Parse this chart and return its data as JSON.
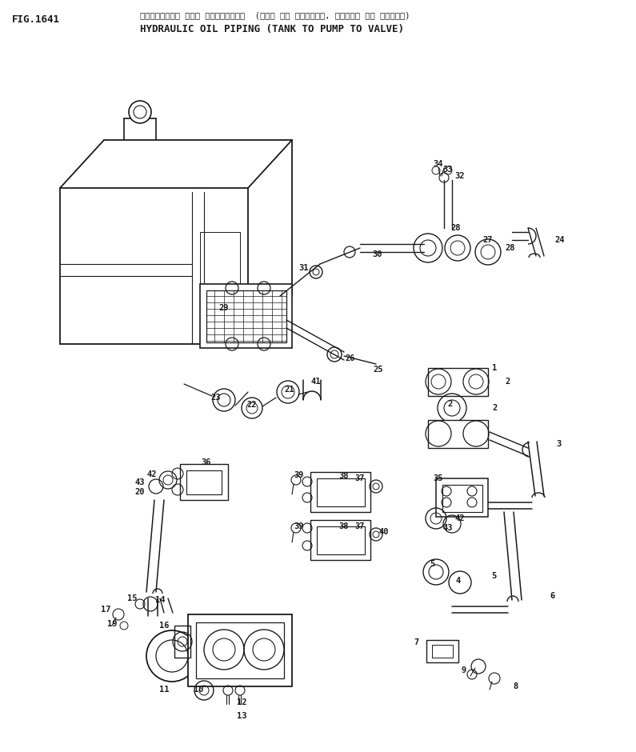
{
  "fig_label": "FIG.1641",
  "title_line1": "ハイド・ロリック オイル バイビング  (タンク から ポンブ・, ポンブ から バルブ)",
  "title_line2": "HYDRAULIC OIL PIPING (TANK TO PUMP TO VALVE)",
  "bg_color": "#ffffff",
  "lc": "#1a1a1a"
}
